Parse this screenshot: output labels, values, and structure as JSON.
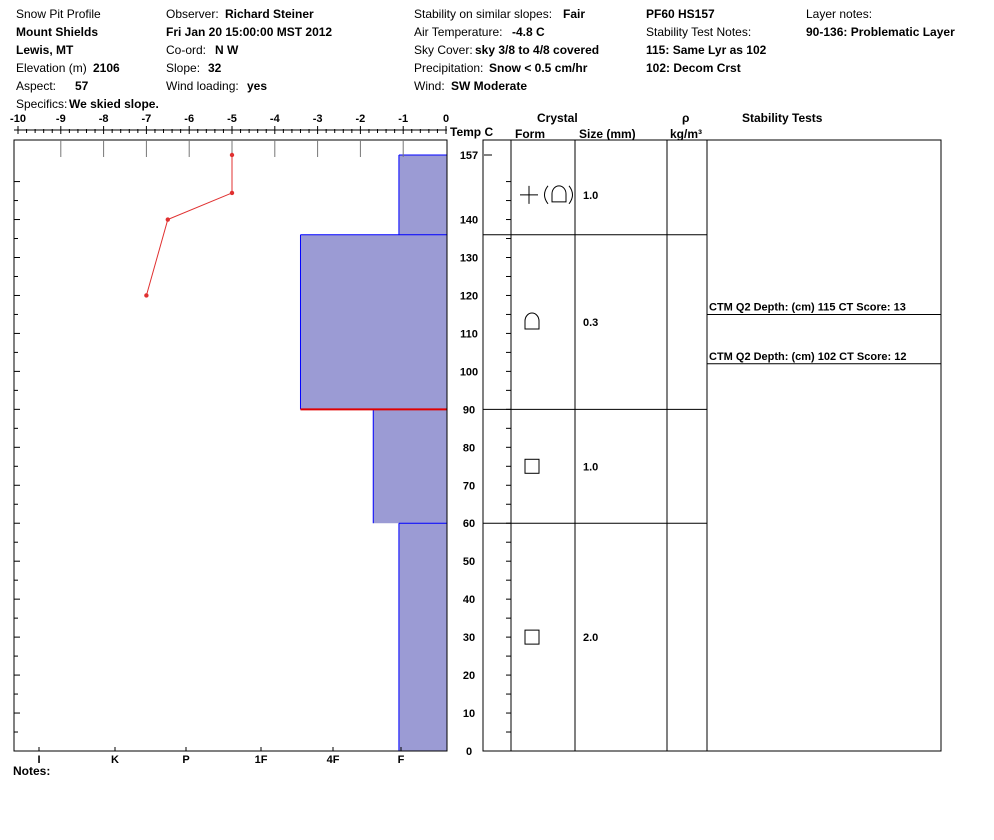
{
  "header": {
    "col1": {
      "title": "Snow Pit Profile",
      "location": "Mount Shields",
      "region": "Lewis, MT",
      "elevation_label": "Elevation (m)",
      "elevation_value": "2106",
      "aspect_label": "Aspect:",
      "aspect_value": "57",
      "specifics_label": "Specifics:",
      "specifics_value": "We skied slope."
    },
    "col2": {
      "observer_label": "Observer:",
      "observer_value": "Richard Steiner",
      "datetime": "Fri Jan 20 15:00:00 MST 2012",
      "coord_label": "Co-ord:",
      "coord_value": "N  W",
      "slope_label": "Slope:",
      "slope_value": "32",
      "wind_loading_label": "Wind loading:",
      "wind_loading_value": "yes"
    },
    "col3": {
      "stability_label": "Stability on similar slopes:",
      "stability_value": "Fair",
      "air_temp_label": "Air Temperature:",
      "air_temp_value": "-4.8 C",
      "sky_label": "Sky Cover:",
      "sky_value": "sky 3/8 to 4/8 covered",
      "precip_label": "Precipitation:",
      "precip_value": "Snow < 0.5 cm/hr",
      "wind_label": "Wind:",
      "wind_value": "SW Moderate"
    },
    "col4": {
      "pf_hs": "PF60 HS157",
      "notes_label": "Stability Test Notes:",
      "note1": "115: Same Lyr as 102",
      "note2": "102: Decom Crst"
    },
    "col5": {
      "layer_notes_label": "Layer notes:",
      "layer_note1": "90-136: Problematic Layer"
    }
  },
  "columns": {
    "temp": "Temp C",
    "crystal": "Crystal",
    "form": "Form",
    "size": "Size (mm)",
    "rho": "ρ",
    "density_unit": "kg/m³",
    "stability_tests": "Stability Tests"
  },
  "notes_label": "Notes:",
  "chart_data": {
    "type": "snow-pit-profile",
    "temperature_axis": {
      "label": "Temp C",
      "range": [
        -10,
        0
      ],
      "ticks": [
        "-10",
        "-9",
        "-8",
        "-7",
        "-6",
        "-5",
        "-4",
        "-3",
        "-2",
        "-1",
        "0"
      ]
    },
    "height_axis": {
      "range": [
        0,
        157
      ],
      "ticks": [
        "0",
        "10",
        "20",
        "30",
        "40",
        "50",
        "60",
        "70",
        "80",
        "90",
        "100",
        "110",
        "120",
        "130",
        "140",
        "157"
      ]
    },
    "hardness_axis": {
      "ticks": [
        "I",
        "K",
        "P",
        "1F",
        "4F",
        "F"
      ]
    },
    "temperature_profile": [
      {
        "temp": -5.0,
        "height": 157
      },
      {
        "temp": -5.0,
        "height": 147
      },
      {
        "temp": -6.5,
        "height": 140
      },
      {
        "temp": -7.0,
        "height": 120
      }
    ],
    "hardness_layers": [
      {
        "top": 157,
        "bottom": 136,
        "temp_extent": -1.1
      },
      {
        "top": 136,
        "bottom": 90,
        "temp_extent": -3.4
      },
      {
        "top": 90,
        "bottom": 60,
        "temp_extent": -1.7
      },
      {
        "top": 60,
        "bottom": 0,
        "temp_extent": -1.1
      }
    ],
    "critical_layer_height": 90,
    "crystal_layers": [
      {
        "top": 157,
        "bottom": 136,
        "form": "decomposing-rounded",
        "size": "1.0"
      },
      {
        "top": 136,
        "bottom": 90,
        "form": "rounded",
        "size": "0.3"
      },
      {
        "top": 90,
        "bottom": 60,
        "form": "faceted",
        "size": "1.0"
      },
      {
        "top": 60,
        "bottom": 0,
        "form": "faceted",
        "size": "2.0"
      }
    ],
    "stability_tests": [
      {
        "height": 115,
        "text": "CTM Q2 Depth: (cm) 115 CT Score: 13"
      },
      {
        "height": 102,
        "text": "CTM Q2 Depth: (cm) 102 CT Score: 12"
      }
    ],
    "colors": {
      "hardness_fill": "#9b9bd4",
      "hardness_edge": "#0000ff",
      "temperature_line": "#e03030",
      "critical_line": "#e00000"
    }
  }
}
